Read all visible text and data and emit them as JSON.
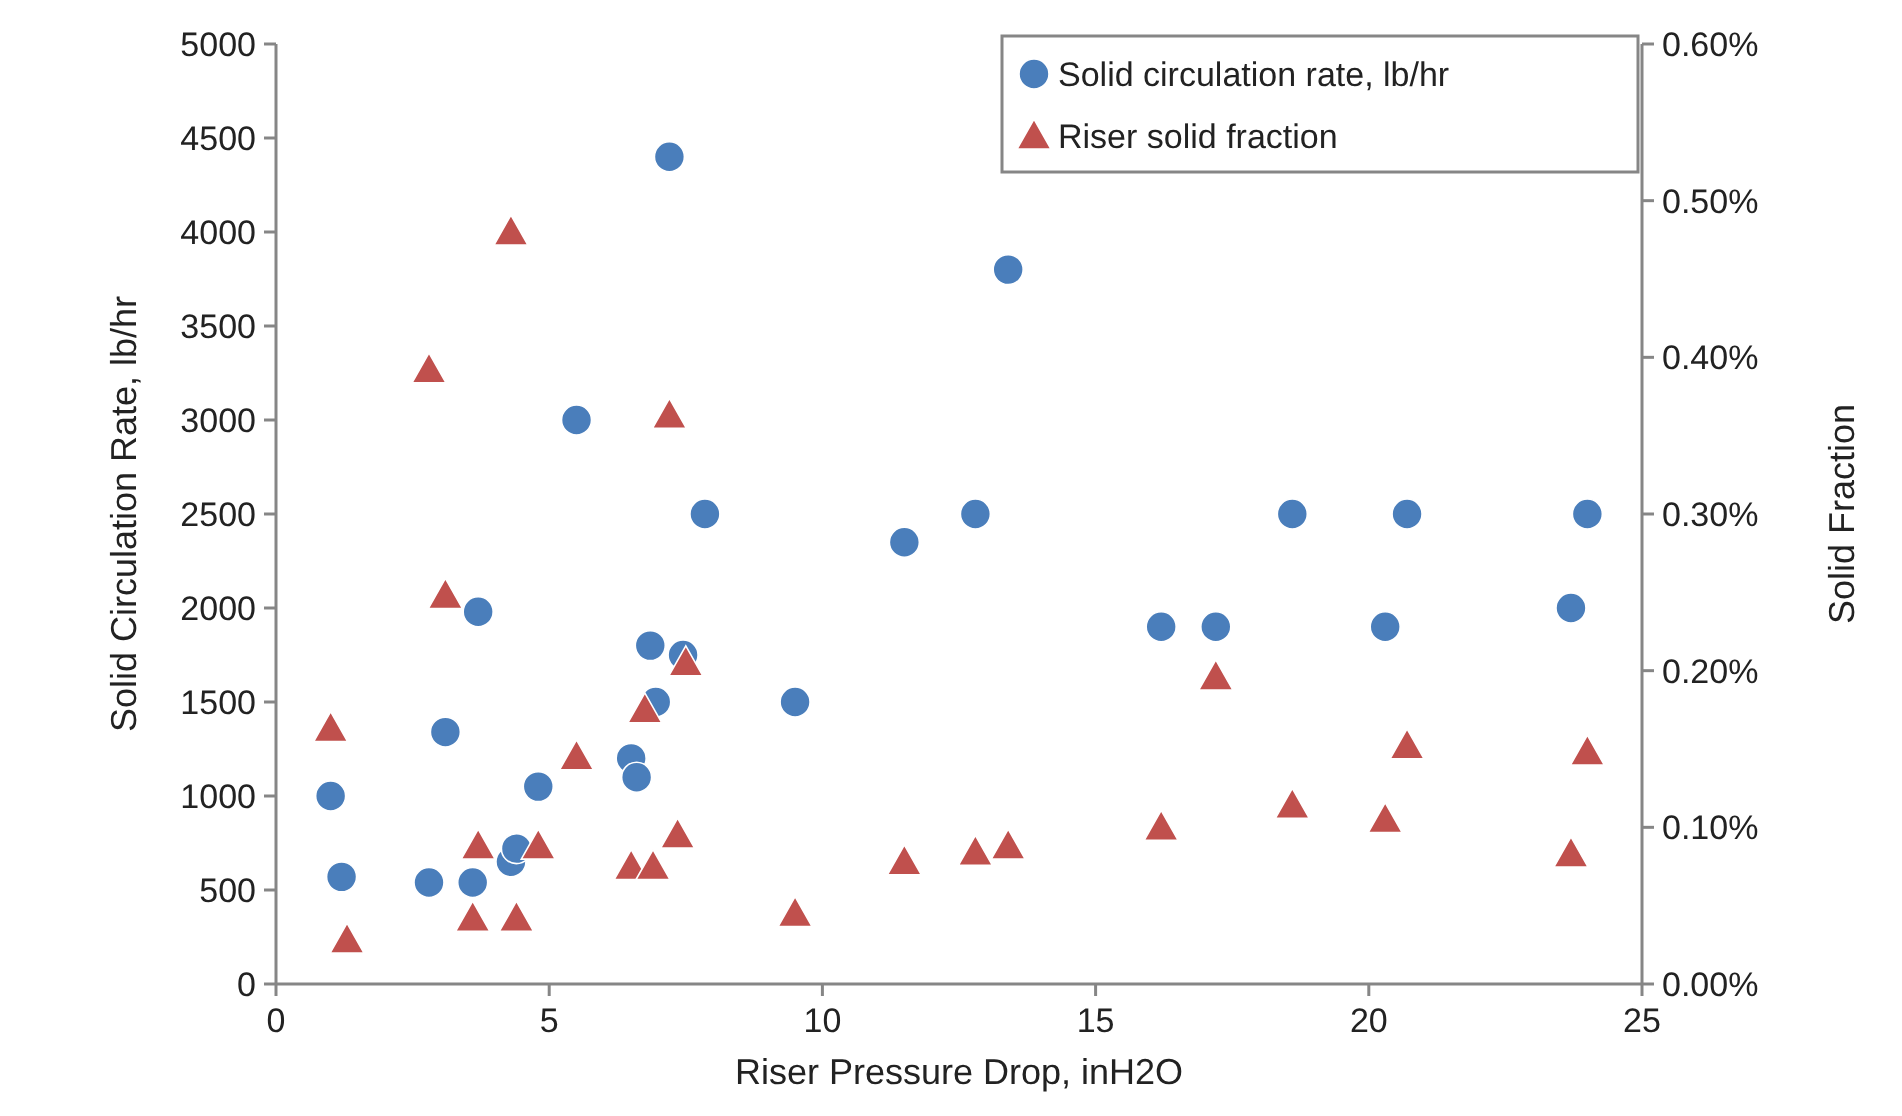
{
  "chart_data": {
    "type": "scatter",
    "xlabel": "Riser Pressure Drop, inH2O",
    "ylabel": "Solid Circulation Rate, lb/hr",
    "y2label": "Solid Fraction",
    "xlim": [
      0,
      25
    ],
    "xticks": [
      0,
      5,
      10,
      15,
      20,
      25
    ],
    "ylim": [
      0,
      5000
    ],
    "yticks": [
      0,
      500,
      1000,
      1500,
      2000,
      2500,
      3000,
      3500,
      4000,
      4500,
      5000
    ],
    "y2lim": [
      0,
      0.6
    ],
    "y2ticks": [
      {
        "value": 0,
        "label": "0.00%"
      },
      {
        "value": 0.1,
        "label": "0.10%"
      },
      {
        "value": 0.2,
        "label": "0.20%"
      },
      {
        "value": 0.3,
        "label": "0.30%"
      },
      {
        "value": 0.4,
        "label": "0.40%"
      },
      {
        "value": 0.5,
        "label": "0.50%"
      },
      {
        "value": 0.6,
        "label": "0.60%"
      }
    ],
    "grid": false,
    "legend": "top right",
    "series": [
      {
        "name": "Solid circulation rate, lb/hr",
        "color": "#4a7ebb",
        "marker": "circle",
        "x": [
          1.0,
          1.2,
          2.8,
          3.1,
          3.6,
          3.7,
          4.3,
          4.4,
          4.8,
          5.5,
          6.5,
          6.6,
          6.85,
          6.95,
          7.2,
          7.45,
          7.85,
          9.5,
          11.5,
          12.8,
          13.4,
          16.2,
          17.2,
          18.6,
          20.3,
          20.7,
          23.7,
          24.0
        ],
        "values": [
          1000,
          570,
          540,
          1340,
          540,
          1980,
          650,
          720,
          1050,
          3000,
          1200,
          1100,
          1800,
          1500,
          4400,
          1750,
          2500,
          1500,
          2350,
          2500,
          3800,
          1900,
          1900,
          2500,
          1900,
          2500,
          2000,
          2500
        ]
      },
      {
        "name": "Riser solid fraction",
        "color": "#c0504d",
        "marker": "triangle",
        "axis": "y2",
        "x": [
          1.0,
          1.3,
          2.8,
          3.1,
          3.6,
          3.7,
          4.3,
          4.4,
          4.8,
          5.5,
          6.5,
          6.75,
          6.9,
          7.2,
          7.35,
          7.5,
          9.5,
          11.5,
          12.8,
          13.4,
          16.2,
          17.2,
          18.6,
          20.3,
          20.7,
          23.7,
          24.0
        ],
        "values": [
          0.163,
          0.028,
          0.392,
          0.248,
          0.042,
          0.088,
          0.48,
          0.042,
          0.088,
          0.145,
          0.075,
          0.175,
          0.075,
          0.363,
          0.095,
          0.205,
          0.045,
          0.078,
          0.084,
          0.088,
          0.1,
          0.196,
          0.114,
          0.105,
          0.152,
          0.083,
          0.148
        ]
      }
    ]
  }
}
